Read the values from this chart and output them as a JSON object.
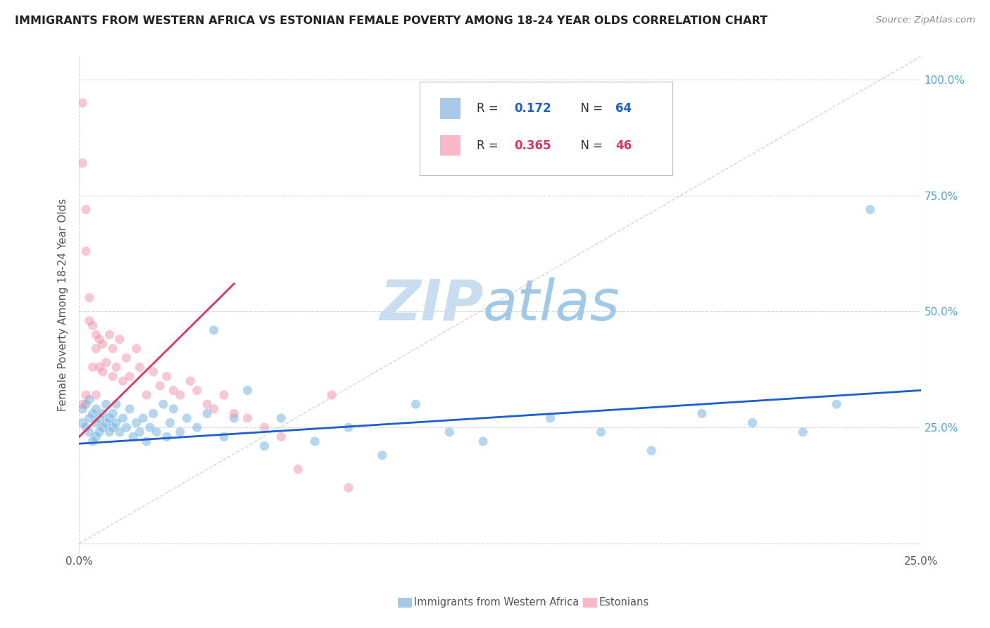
{
  "title": "IMMIGRANTS FROM WESTERN AFRICA VS ESTONIAN FEMALE POVERTY AMONG 18-24 YEAR OLDS CORRELATION CHART",
  "source": "Source: ZipAtlas.com",
  "ylabel": "Female Poverty Among 18-24 Year Olds",
  "xlim": [
    0.0,
    0.25
  ],
  "ylim": [
    -0.02,
    1.05
  ],
  "legend1_color": "#a8c8e8",
  "legend2_color": "#f8b8c8",
  "scatter1_color": "#6aafe0",
  "scatter2_color": "#f090a8",
  "line1_color": "#1a5fcc",
  "line2_color": "#e83060",
  "diagonal_color": "#cccccc",
  "watermark_zip": "#c8ddf0",
  "watermark_atlas": "#a0c8e8",
  "bottom_legend_labels": [
    "Immigrants from Western Africa",
    "Estonians"
  ],
  "R1": 0.172,
  "N1": 64,
  "R2": 0.365,
  "N2": 46,
  "blue_r_color": "#1a5fcc",
  "pink_r_color": "#e83060",
  "right_axis_color": "#4da6e0",
  "scatter1_x": [
    0.001,
    0.001,
    0.002,
    0.002,
    0.003,
    0.003,
    0.003,
    0.004,
    0.004,
    0.005,
    0.005,
    0.005,
    0.006,
    0.006,
    0.007,
    0.007,
    0.008,
    0.008,
    0.009,
    0.009,
    0.01,
    0.01,
    0.011,
    0.011,
    0.012,
    0.013,
    0.014,
    0.015,
    0.016,
    0.017,
    0.018,
    0.019,
    0.02,
    0.021,
    0.022,
    0.023,
    0.025,
    0.026,
    0.027,
    0.028,
    0.03,
    0.032,
    0.035,
    0.038,
    0.04,
    0.043,
    0.046,
    0.05,
    0.055,
    0.06,
    0.07,
    0.08,
    0.09,
    0.1,
    0.11,
    0.12,
    0.14,
    0.155,
    0.17,
    0.185,
    0.2,
    0.215,
    0.225,
    0.235
  ],
  "scatter1_y": [
    0.26,
    0.29,
    0.25,
    0.3,
    0.27,
    0.24,
    0.31,
    0.28,
    0.22,
    0.26,
    0.29,
    0.23,
    0.27,
    0.24,
    0.28,
    0.25,
    0.26,
    0.3,
    0.24,
    0.27,
    0.25,
    0.28,
    0.26,
    0.3,
    0.24,
    0.27,
    0.25,
    0.29,
    0.23,
    0.26,
    0.24,
    0.27,
    0.22,
    0.25,
    0.28,
    0.24,
    0.3,
    0.23,
    0.26,
    0.29,
    0.24,
    0.27,
    0.25,
    0.28,
    0.46,
    0.23,
    0.27,
    0.33,
    0.21,
    0.27,
    0.22,
    0.25,
    0.19,
    0.3,
    0.24,
    0.22,
    0.27,
    0.24,
    0.2,
    0.28,
    0.26,
    0.24,
    0.3,
    0.72
  ],
  "scatter2_x": [
    0.001,
    0.001,
    0.002,
    0.002,
    0.003,
    0.003,
    0.004,
    0.004,
    0.005,
    0.005,
    0.006,
    0.006,
    0.007,
    0.007,
    0.008,
    0.009,
    0.01,
    0.01,
    0.011,
    0.012,
    0.013,
    0.014,
    0.015,
    0.017,
    0.018,
    0.02,
    0.022,
    0.024,
    0.026,
    0.028,
    0.03,
    0.033,
    0.035,
    0.038,
    0.04,
    0.043,
    0.046,
    0.05,
    0.055,
    0.06,
    0.065,
    0.075,
    0.08,
    0.001,
    0.002,
    0.005
  ],
  "scatter2_y": [
    0.95,
    0.82,
    0.72,
    0.63,
    0.53,
    0.48,
    0.47,
    0.38,
    0.42,
    0.45,
    0.38,
    0.44,
    0.37,
    0.43,
    0.39,
    0.45,
    0.36,
    0.42,
    0.38,
    0.44,
    0.35,
    0.4,
    0.36,
    0.42,
    0.38,
    0.32,
    0.37,
    0.34,
    0.36,
    0.33,
    0.32,
    0.35,
    0.33,
    0.3,
    0.29,
    0.32,
    0.28,
    0.27,
    0.25,
    0.23,
    0.16,
    0.32,
    0.12,
    0.3,
    0.32,
    0.32
  ],
  "pink_line_x": [
    0.0,
    0.046
  ],
  "pink_line_y": [
    0.23,
    0.56
  ],
  "blue_line_x": [
    0.0,
    0.25
  ],
  "blue_line_y": [
    0.215,
    0.33
  ]
}
